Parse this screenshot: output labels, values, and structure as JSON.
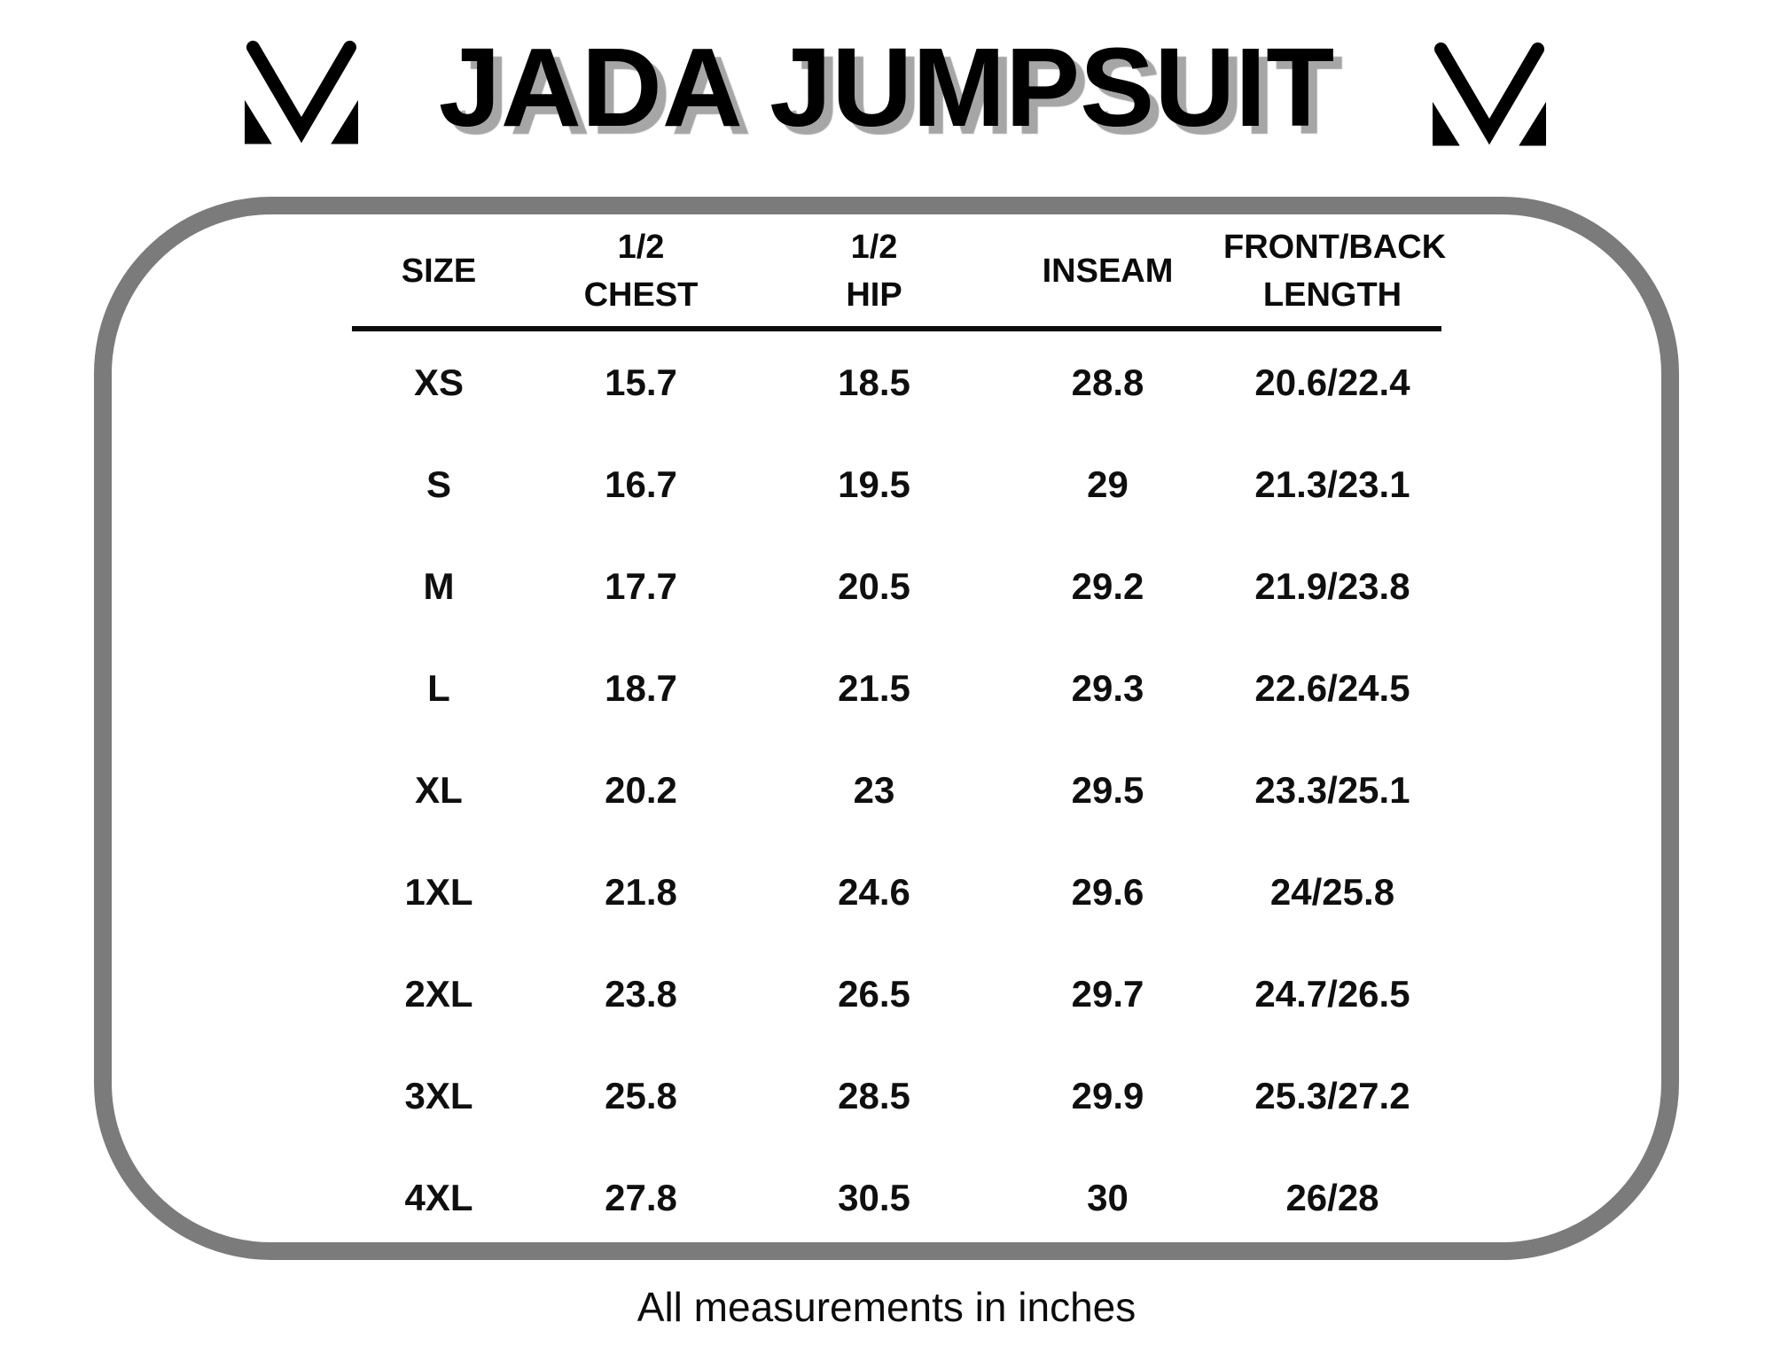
{
  "page": {
    "background_color": "#ffffff",
    "text_color": "#0a0a0a"
  },
  "header": {
    "title": "JADA JUMPSUIT",
    "title_color": "#000000",
    "title_shadow_color": "#a6a6a6",
    "logo": "brand-m-monogram"
  },
  "size_chart": {
    "frame_border_color": "#7b7b7b",
    "header_rule_color": "#0b0b0b",
    "columns": [
      "SIZE",
      "1/2\nCHEST",
      "1/2\nHIP",
      "INSEAM",
      "FRONT/BACK\nLENGTH"
    ],
    "rows": [
      [
        "XS",
        "15.7",
        "18.5",
        "28.8",
        "20.6/22.4"
      ],
      [
        "S",
        "16.7",
        "19.5",
        "29",
        "21.3/23.1"
      ],
      [
        "M",
        "17.7",
        "20.5",
        "29.2",
        "21.9/23.8"
      ],
      [
        "L",
        "18.7",
        "21.5",
        "29.3",
        "22.6/24.5"
      ],
      [
        "XL",
        "20.2",
        "23",
        "29.5",
        "23.3/25.1"
      ],
      [
        "1XL",
        "21.8",
        "24.6",
        "29.6",
        "24/25.8"
      ],
      [
        "2XL",
        "23.8",
        "26.5",
        "29.7",
        "24.7/26.5"
      ],
      [
        "3XL",
        "25.8",
        "28.5",
        "29.9",
        "25.3/27.2"
      ],
      [
        "4XL",
        "27.8",
        "30.5",
        "30",
        "26/28"
      ]
    ]
  },
  "footer": {
    "note": "All measurements in inches"
  }
}
